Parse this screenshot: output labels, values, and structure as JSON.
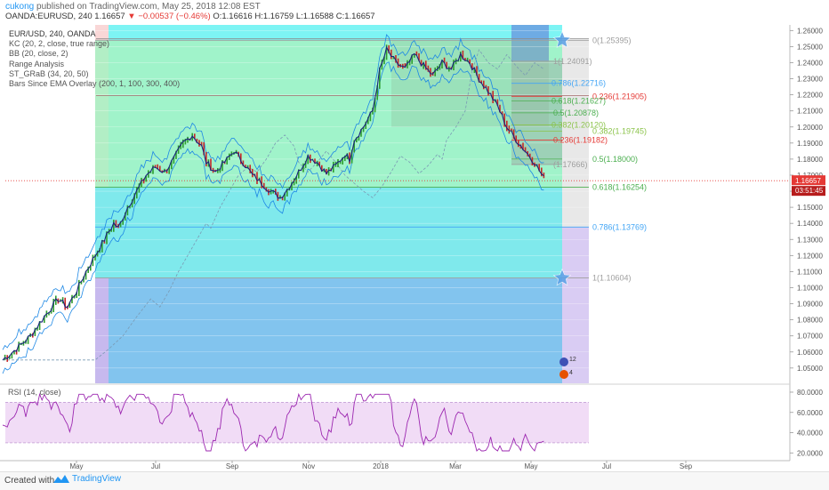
{
  "header": {
    "author": "cukong",
    "published": "published on TradingView.com, May 25, 2018 12:08 EST",
    "symbol_line": "OANDA:EURUSD, 240  1.16657",
    "change": "▼ −0.00537 (−0.46%)",
    "ohlc": "O:1.16616  H:1.16759  L:1.16588  C:1.16657"
  },
  "indicators": {
    "title": "EUR/USD, 240, OANDA",
    "items": [
      "KC (20, 2, close, true range)",
      "BB (20, close, 2)",
      "Range Analysis",
      "ST_GRaB (34, 20, 50)",
      "Bars Since EMA Overlay (200, 1, 100, 300, 400)"
    ]
  },
  "rsi_label": "RSI (14, close)",
  "footer": {
    "made_with": "Created with",
    "brand": "TradingView"
  },
  "colors": {
    "cyan_zone": "#7df4f4",
    "blue_zone": "#82c4ee",
    "green_zone": "#a6f2c2",
    "price_green": "#2e9d2e",
    "price_red": "#c62828",
    "kc_line": "#1e88e5",
    "rsi_line": "#9c27b0",
    "rsi_band": "#f1dcf6",
    "current_price": "#e53935"
  },
  "chart_data": {
    "type": "line",
    "title": "EUR/USD, 240, OANDA",
    "xlabel": "",
    "ylabel": "",
    "x_ticks": [
      "May",
      "Jul",
      "Sep",
      "Nov",
      "2018",
      "Mar",
      "May",
      "Jul",
      "Sep"
    ],
    "y_ticks": [
      "1.26000",
      "1.25000",
      "1.24000",
      "1.23000",
      "1.22000",
      "1.21000",
      "1.20000",
      "1.19000",
      "1.18000",
      "1.17000",
      "1.16000",
      "1.15000",
      "1.14000",
      "1.13000",
      "1.12000",
      "1.11000",
      "1.10000",
      "1.09000",
      "1.08000",
      "1.07000",
      "1.06000",
      "1.05000"
    ],
    "ylim": [
      1.0405,
      1.2635
    ],
    "current_price": {
      "value": 1.16657,
      "label": "1.16657",
      "countdown": "03:51:45"
    },
    "price_path": [
      [
        0,
        1.055
      ],
      [
        6,
        1.062
      ],
      [
        12,
        1.07
      ],
      [
        18,
        1.082
      ],
      [
        24,
        1.093
      ],
      [
        28,
        1.088
      ],
      [
        32,
        1.098
      ],
      [
        36,
        1.11
      ],
      [
        40,
        1.12
      ],
      [
        44,
        1.13
      ],
      [
        48,
        1.14
      ],
      [
        50,
        1.137
      ],
      [
        54,
        1.15
      ],
      [
        58,
        1.16
      ],
      [
        62,
        1.17
      ],
      [
        66,
        1.175
      ],
      [
        70,
        1.172
      ],
      [
        74,
        1.18
      ],
      [
        78,
        1.19
      ],
      [
        82,
        1.195
      ],
      [
        86,
        1.188
      ],
      [
        88,
        1.178
      ],
      [
        92,
        1.172
      ],
      [
        96,
        1.178
      ],
      [
        100,
        1.185
      ],
      [
        104,
        1.178
      ],
      [
        108,
        1.17
      ],
      [
        112,
        1.165
      ],
      [
        116,
        1.16
      ],
      [
        120,
        1.156
      ],
      [
        124,
        1.163
      ],
      [
        128,
        1.172
      ],
      [
        132,
        1.182
      ],
      [
        136,
        1.178
      ],
      [
        140,
        1.171
      ],
      [
        144,
        1.176
      ],
      [
        148,
        1.183
      ],
      [
        150,
        1.18
      ],
      [
        152,
        1.192
      ],
      [
        156,
        1.2
      ],
      [
        160,
        1.21
      ],
      [
        163,
        1.235
      ],
      [
        166,
        1.248
      ],
      [
        170,
        1.24
      ],
      [
        174,
        1.236
      ],
      [
        178,
        1.245
      ],
      [
        182,
        1.238
      ],
      [
        186,
        1.232
      ],
      [
        190,
        1.24
      ],
      [
        194,
        1.236
      ],
      [
        198,
        1.245
      ],
      [
        202,
        1.24
      ],
      [
        206,
        1.23
      ],
      [
        210,
        1.222
      ],
      [
        214,
        1.213
      ],
      [
        218,
        1.2
      ],
      [
        222,
        1.192
      ],
      [
        226,
        1.185
      ],
      [
        230,
        1.178
      ],
      [
        234,
        1.168
      ]
    ],
    "rsi": {
      "label": "RSI (14, close)",
      "y_ticks": [
        "80.0000",
        "60.0000",
        "40.0000",
        "20.0000"
      ],
      "ylim": [
        15,
        87
      ],
      "bands": [
        30,
        70
      ]
    },
    "fib_big": [
      {
        "label": "0(1.25395)",
        "value": 1.25395,
        "color": "#9e9e9e"
      },
      {
        "label": "0.618(1.16254)",
        "value": 1.16254,
        "color": "#4caf50"
      },
      {
        "label": "0.786(1.13769)",
        "value": 1.13769,
        "color": "#42a5f5"
      },
      {
        "label": "1(1.10604)",
        "value": 1.10604,
        "color": "#9e9e9e"
      }
    ],
    "fib_small": [
      {
        "label": "1(1.24091)",
        "value": 1.24091,
        "color": "#9e9e9e"
      },
      {
        "label": "0.786(1.22716)",
        "value": 1.22716,
        "color": "#42a5f5"
      },
      {
        "label": "0.236(1.21905)",
        "value": 1.21905,
        "color": "#e53935"
      },
      {
        "label": "0.618(1.21627)",
        "value": 1.21627,
        "color": "#4caf50"
      },
      {
        "label": "0.5(1.20878)",
        "value": 1.20878,
        "color": "#4caf50"
      },
      {
        "label": "0.382(1.20120)",
        "value": 1.2012,
        "color": "#8bc34a"
      },
      {
        "label": "0.382(1.19745)",
        "value": 1.19745,
        "color": "#8bc34a"
      },
      {
        "label": "0.236(1.19182)",
        "value": 1.19182,
        "color": "#e53935"
      },
      {
        "label": "0.5(1.18000)",
        "value": 1.18,
        "color": "#4caf50"
      },
      {
        "label": "(1.17666)",
        "value": 1.17666,
        "color": "#9e9e9e"
      }
    ],
    "badge_labels": [
      "12",
      "4"
    ]
  }
}
